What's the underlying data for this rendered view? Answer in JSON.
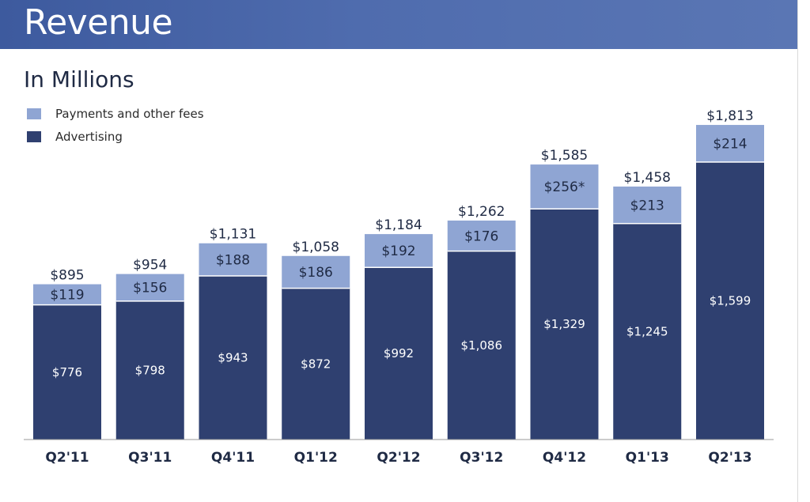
{
  "slide": {
    "title": "Revenue",
    "subtitle": "In Millions"
  },
  "colors": {
    "banner": "#4a66aa",
    "advertising": "#2f4070",
    "payments": "#8fa5d3",
    "text": "#1f2a44"
  },
  "chart_data": {
    "type": "bar",
    "stacked": true,
    "categories": [
      "Q2'11",
      "Q3'11",
      "Q4'11",
      "Q1'12",
      "Q2'12",
      "Q3'12",
      "Q4'12",
      "Q1'13",
      "Q2'13"
    ],
    "series": [
      {
        "name": "Advertising",
        "values": [
          776,
          798,
          943,
          872,
          992,
          1086,
          1329,
          1245,
          1599
        ]
      },
      {
        "name": "Payments and other fees",
        "values": [
          119,
          156,
          188,
          186,
          192,
          176,
          256,
          213,
          214
        ]
      }
    ],
    "totals": [
      895,
      954,
      1131,
      1058,
      1184,
      1262,
      1585,
      1458,
      1813
    ],
    "value_labels": {
      "Advertising": [
        "$776",
        "$798",
        "$943",
        "$872",
        "$992",
        "$1,086",
        "$1,329",
        "$1,245",
        "$1,599"
      ],
      "Payments and other fees": [
        "$119",
        "$156",
        "$188",
        "$186",
        "$192",
        "$176",
        "$256*",
        "$213",
        "$214"
      ],
      "totals": [
        "$895",
        "$954",
        "$1,131",
        "$1,058",
        "$1,184",
        "$1,262",
        "$1,585",
        "$1,458",
        "$1,813"
      ]
    },
    "legend": {
      "position": "top-left",
      "entries": [
        "Payments and other fees",
        "Advertising"
      ]
    },
    "ylim": [
      0,
      2000
    ],
    "grid": false,
    "y_axis_visible": false
  }
}
